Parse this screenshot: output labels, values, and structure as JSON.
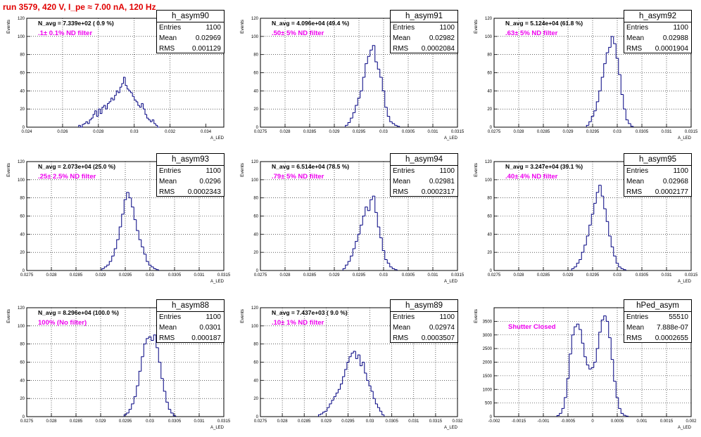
{
  "title": "run 3579,   420 V, I_pe ≈ 7.00 nA, 120 Hz",
  "chart_data": [
    {
      "type": "bar",
      "hist": "h_asym90",
      "stats": {
        "entries": "1100",
        "mean": "0.02969",
        "rms": "0.001129"
      },
      "navg": "N_avg = 7.339e+02 ( 0.9 %)",
      "filter": ".1± 0.1% ND filter",
      "xlim": [
        0.024,
        0.035
      ],
      "xticks": [
        "0.024",
        "0.026",
        "0.028",
        "0.03",
        "0.032",
        "0.034"
      ],
      "ylim": [
        0,
        120
      ],
      "yticks": [
        "0",
        "20",
        "40",
        "60",
        "80",
        "100",
        "120"
      ],
      "xlabel": "A_LED",
      "ylabel": "Events",
      "bins_x": [
        0.02695,
        0.02705,
        0.02715,
        0.02725,
        0.02735,
        0.02745,
        0.02755,
        0.02765,
        0.02775,
        0.02785,
        0.02795,
        0.02805,
        0.02815,
        0.02825,
        0.02835,
        0.02845,
        0.02855,
        0.02865,
        0.02875,
        0.02885,
        0.02895,
        0.02905,
        0.02915,
        0.02925,
        0.02935,
        0.02945,
        0.02955,
        0.02965,
        0.02975,
        0.02985,
        0.02995,
        0.03005,
        0.03015,
        0.03025,
        0.03035,
        0.03045,
        0.03055,
        0.03065,
        0.03075,
        0.03085,
        0.03095,
        0.03105,
        0.03115,
        0.03125,
        0.03135
      ],
      "bins_y": [
        2,
        0,
        3,
        4,
        6,
        4,
        8,
        10,
        14,
        18,
        12,
        20,
        15,
        22,
        24,
        20,
        26,
        28,
        32,
        30,
        35,
        40,
        38,
        44,
        48,
        55,
        46,
        42,
        40,
        38,
        34,
        30,
        28,
        24,
        22,
        26,
        20,
        14,
        10,
        8,
        6,
        8,
        4,
        2,
        0
      ]
    },
    {
      "type": "bar",
      "hist": "h_asym91",
      "stats": {
        "entries": "1100",
        "mean": "0.02982",
        "rms": "0.0002084"
      },
      "navg": "N_avg = 4.096e+04 (49.4 %)",
      "filter": ".50± 5% ND filter",
      "xlim": [
        0.0275,
        0.0315
      ],
      "xticks": [
        "0.0275",
        "0.028",
        "0.0285",
        "0.029",
        "0.0295",
        "0.03",
        "0.0305",
        "0.031",
        "0.0315"
      ],
      "ylim": [
        0,
        120
      ],
      "yticks": [
        "0",
        "20",
        "40",
        "60",
        "80",
        "100",
        "120"
      ],
      "xlabel": "A_LED",
      "ylabel": "Events",
      "bins_x": [
        0.02925,
        0.0293,
        0.02935,
        0.0294,
        0.02945,
        0.0295,
        0.02955,
        0.0296,
        0.02965,
        0.0297,
        0.02975,
        0.0298,
        0.02985,
        0.0299,
        0.02995,
        0.03,
        0.03005,
        0.0301,
        0.03015,
        0.0302,
        0.03025,
        0.0303
      ],
      "bins_y": [
        2,
        5,
        10,
        16,
        24,
        32,
        40,
        55,
        70,
        78,
        85,
        90,
        72,
        64,
        55,
        40,
        22,
        12,
        6,
        4,
        2,
        1
      ]
    },
    {
      "type": "bar",
      "hist": "h_asym92",
      "stats": {
        "entries": "1100",
        "mean": "0.02988",
        "rms": "0.0001904"
      },
      "navg": "N_avg = 5.124e+04 (61.8 %)",
      "filter": ".63± 5% ND filter",
      "xlim": [
        0.0275,
        0.0315
      ],
      "xticks": [
        "0.0275",
        "0.028",
        "0.0285",
        "0.029",
        "0.0295",
        "0.03",
        "0.0305",
        "0.031",
        "0.0315"
      ],
      "ylim": [
        0,
        120
      ],
      "yticks": [
        "0",
        "20",
        "40",
        "60",
        "80",
        "100",
        "120"
      ],
      "xlabel": "A_LED",
      "ylabel": "Events",
      "bins_x": [
        0.0294,
        0.02945,
        0.0295,
        0.02955,
        0.0296,
        0.02965,
        0.0297,
        0.02975,
        0.0298,
        0.02985,
        0.0299,
        0.02995,
        0.03,
        0.03005,
        0.0301,
        0.03015,
        0.0302,
        0.03025,
        0.0303
      ],
      "bins_y": [
        2,
        6,
        12,
        18,
        28,
        40,
        55,
        70,
        82,
        88,
        100,
        92,
        76,
        58,
        36,
        20,
        8,
        4,
        1
      ]
    },
    {
      "type": "bar",
      "hist": "h_asym93",
      "stats": {
        "entries": "1100",
        "mean": "0.0296",
        "rms": "0.0002343"
      },
      "navg": "N_avg = 2.073e+04 (25.0 %)",
      "filter": ".25± 2.5% ND filter",
      "xlim": [
        0.0275,
        0.0315
      ],
      "xticks": [
        "0.0275",
        "0.028",
        "0.0285",
        "0.029",
        "0.0295",
        "0.03",
        "0.0305",
        "0.031",
        "0.0315"
      ],
      "ylim": [
        0,
        120
      ],
      "yticks": [
        "0",
        "20",
        "40",
        "60",
        "80",
        "100",
        "120"
      ],
      "xlabel": "A_LED",
      "ylabel": "Events",
      "bins_x": [
        0.02905,
        0.0291,
        0.02915,
        0.0292,
        0.02925,
        0.0293,
        0.02935,
        0.0294,
        0.02945,
        0.0295,
        0.02955,
        0.0296,
        0.02965,
        0.0297,
        0.02975,
        0.0298,
        0.02985,
        0.0299,
        0.02995,
        0.03,
        0.03005,
        0.0301,
        0.03015
      ],
      "bins_y": [
        2,
        4,
        6,
        10,
        16,
        24,
        34,
        48,
        62,
        78,
        86,
        80,
        70,
        56,
        44,
        34,
        26,
        18,
        10,
        6,
        4,
        2,
        1
      ]
    },
    {
      "type": "bar",
      "hist": "h_asym94",
      "stats": {
        "entries": "1100",
        "mean": "0.02981",
        "rms": "0.0002317"
      },
      "navg": "N_avg = 6.514e+04 (78.5 %)",
      "filter": ".79± 5% ND filter",
      "xlim": [
        0.0275,
        0.0315
      ],
      "xticks": [
        "0.0275",
        "0.028",
        "0.0285",
        "0.029",
        "0.0295",
        "0.03",
        "0.0305",
        "0.031",
        "0.0315"
      ],
      "ylim": [
        0,
        120
      ],
      "yticks": [
        "0",
        "20",
        "40",
        "60",
        "80",
        "100",
        "120"
      ],
      "xlabel": "A_LED",
      "ylabel": "Events",
      "bins_x": [
        0.0292,
        0.02925,
        0.0293,
        0.02935,
        0.0294,
        0.02945,
        0.0295,
        0.02955,
        0.0296,
        0.02965,
        0.0297,
        0.02975,
        0.0298,
        0.02985,
        0.0299,
        0.02995,
        0.03,
        0.03005,
        0.0301,
        0.03015,
        0.0302,
        0.03025
      ],
      "bins_y": [
        2,
        6,
        10,
        16,
        24,
        32,
        40,
        50,
        60,
        70,
        66,
        78,
        82,
        64,
        48,
        36,
        22,
        12,
        8,
        4,
        2,
        1
      ]
    },
    {
      "type": "bar",
      "hist": "h_asym95",
      "stats": {
        "entries": "1100",
        "mean": "0.02968",
        "rms": "0.0002177"
      },
      "navg": "N_avg = 3.247e+04 (39.1 %)",
      "filter": ".40± 4% ND filter",
      "xlim": [
        0.0275,
        0.0315
      ],
      "xticks": [
        "0.0275",
        "0.028",
        "0.0285",
        "0.029",
        "0.0295",
        "0.03",
        "0.0305",
        "0.031",
        "0.0315"
      ],
      "ylim": [
        0,
        120
      ],
      "yticks": [
        "0",
        "20",
        "40",
        "60",
        "80",
        "100",
        "120"
      ],
      "xlabel": "A_LED",
      "ylabel": "Events",
      "bins_x": [
        0.0291,
        0.02915,
        0.0292,
        0.02925,
        0.0293,
        0.02935,
        0.0294,
        0.02945,
        0.0295,
        0.02955,
        0.0296,
        0.02965,
        0.0297,
        0.02975,
        0.0298,
        0.02985,
        0.0299,
        0.02995,
        0.03,
        0.03005,
        0.0301,
        0.03015
      ],
      "bins_y": [
        2,
        4,
        8,
        12,
        20,
        28,
        38,
        50,
        62,
        74,
        86,
        94,
        82,
        68,
        54,
        38,
        26,
        16,
        8,
        4,
        2,
        1
      ]
    },
    {
      "type": "bar",
      "hist": "h_asym88",
      "stats": {
        "entries": "1100",
        "mean": "0.0301",
        "rms": "0.000187"
      },
      "navg": "N_avg = 8.296e+04 (100.0 %)",
      "filter": "100% (No filter)",
      "xlim": [
        0.0275,
        0.0315
      ],
      "xticks": [
        "0.0275",
        "0.028",
        "0.0285",
        "0.029",
        "0.0295",
        "0.03",
        "0.0305",
        "0.031",
        "0.0315"
      ],
      "ylim": [
        0,
        120
      ],
      "yticks": [
        "0",
        "20",
        "40",
        "60",
        "80",
        "100",
        "120"
      ],
      "xlabel": "A_LED",
      "ylabel": "Events",
      "bins_x": [
        0.0295,
        0.02955,
        0.0296,
        0.02965,
        0.0297,
        0.02975,
        0.0298,
        0.02985,
        0.0299,
        0.02995,
        0.03,
        0.03005,
        0.0301,
        0.03015,
        0.0302,
        0.03025,
        0.0303,
        0.03035,
        0.0304,
        0.03045,
        0.0305
      ],
      "bins_y": [
        2,
        4,
        8,
        14,
        22,
        34,
        50,
        66,
        80,
        86,
        88,
        84,
        90,
        76,
        60,
        42,
        28,
        16,
        8,
        4,
        1
      ]
    },
    {
      "type": "bar",
      "hist": "h_asym89",
      "stats": {
        "entries": "1100",
        "mean": "0.02974",
        "rms": "0.0003507"
      },
      "navg": "N_avg = 7.437e+03 ( 9.0 %)",
      "filter": ".10± 1% ND filter",
      "xlim": [
        0.0275,
        0.032
      ],
      "xticks": [
        "0.0275",
        "0.028",
        "0.0285",
        "0.029",
        "0.0295",
        "0.03",
        "0.0305",
        "0.031",
        "0.0315",
        "0.032"
      ],
      "ylim": [
        0,
        120
      ],
      "yticks": [
        "0",
        "20",
        "40",
        "60",
        "80",
        "100",
        "120"
      ],
      "xlabel": "A_LED",
      "ylabel": "Events",
      "bins_x": [
        0.02885,
        0.0289,
        0.02895,
        0.029,
        0.02905,
        0.0291,
        0.02915,
        0.0292,
        0.02925,
        0.0293,
        0.02935,
        0.0294,
        0.02945,
        0.0295,
        0.02955,
        0.0296,
        0.02965,
        0.0297,
        0.02975,
        0.0298,
        0.02985,
        0.0299,
        0.02995,
        0.03,
        0.03005,
        0.0301,
        0.03015,
        0.0302,
        0.03025,
        0.0303
      ],
      "bins_y": [
        2,
        3,
        5,
        6,
        10,
        14,
        18,
        22,
        26,
        30,
        36,
        44,
        52,
        60,
        66,
        70,
        72,
        64,
        68,
        56,
        60,
        48,
        40,
        34,
        28,
        20,
        14,
        10,
        6,
        2
      ]
    },
    {
      "type": "bar",
      "hist": "hPed_asym",
      "stats": {
        "entries": "55510",
        "mean": "7.888e-07",
        "rms": "0.0002655"
      },
      "navg": "",
      "filter": "Shutter Closed",
      "xlim": [
        -0.002,
        0.002
      ],
      "xticks": [
        "-0.002",
        "-0.0015",
        "-0.001",
        "-0.0005",
        "0",
        "0.0005",
        "0.001",
        "0.0015",
        "0.002"
      ],
      "ylim": [
        0,
        4000
      ],
      "yticks": [
        "0",
        "500",
        "1000",
        "1500",
        "2000",
        "2500",
        "3000",
        "3500"
      ],
      "xlabel": "A_LED",
      "ylabel": "Events",
      "bins_x": [
        -0.0007,
        -0.00065,
        -0.0006,
        -0.00055,
        -0.0005,
        -0.00045,
        -0.0004,
        -0.00035,
        -0.0003,
        -0.00025,
        -0.0002,
        -0.00015,
        -0.0001,
        -5e-05,
        0,
        5e-05,
        0.0001,
        0.00015,
        0.0002,
        0.00025,
        0.0003,
        0.00035,
        0.0004,
        0.00045,
        0.0005,
        0.00055,
        0.0006,
        0.00065,
        0.0007
      ],
      "bins_y": [
        40,
        120,
        300,
        700,
        1400,
        2300,
        3000,
        3300,
        3400,
        3200,
        2700,
        2200,
        1900,
        1750,
        1800,
        2000,
        2500,
        3100,
        3550,
        3700,
        3500,
        2900,
        2100,
        1300,
        700,
        300,
        120,
        50,
        20
      ]
    }
  ]
}
